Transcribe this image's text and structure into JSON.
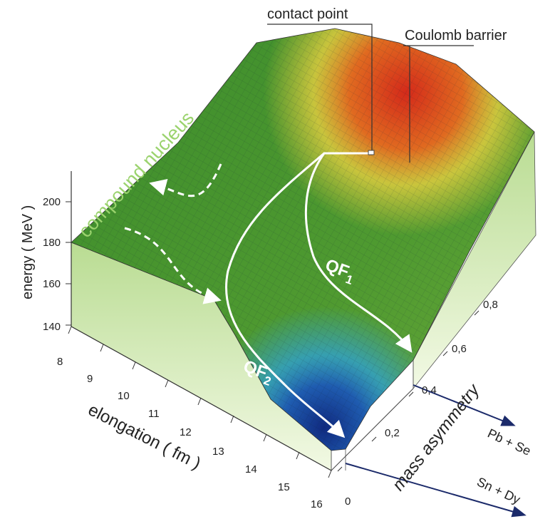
{
  "annotations": {
    "contact_point": "contact point",
    "coulomb_barrier": "Coulomb barrier",
    "compound_nucleus": "compound nucleus",
    "qf1": {
      "text": "QF",
      "subscript": "1"
    },
    "qf2": {
      "text": "QF",
      "subscript": "2"
    }
  },
  "axes": {
    "energy": {
      "label": "energy ( MeV )",
      "ticks": [
        "200",
        "180",
        "160",
        "140"
      ]
    },
    "elongation": {
      "label": "elongation ( fm )",
      "ticks": [
        "8",
        "9",
        "10",
        "11",
        "12",
        "13",
        "14",
        "15",
        "16"
      ]
    },
    "mass_asymmetry": {
      "label": "mass asymmetry",
      "ticks": [
        "0",
        "0,2",
        "0,4",
        "0,6",
        "0,8"
      ]
    },
    "systems": [
      "Pb + Se",
      "Sn + Dy"
    ]
  }
}
